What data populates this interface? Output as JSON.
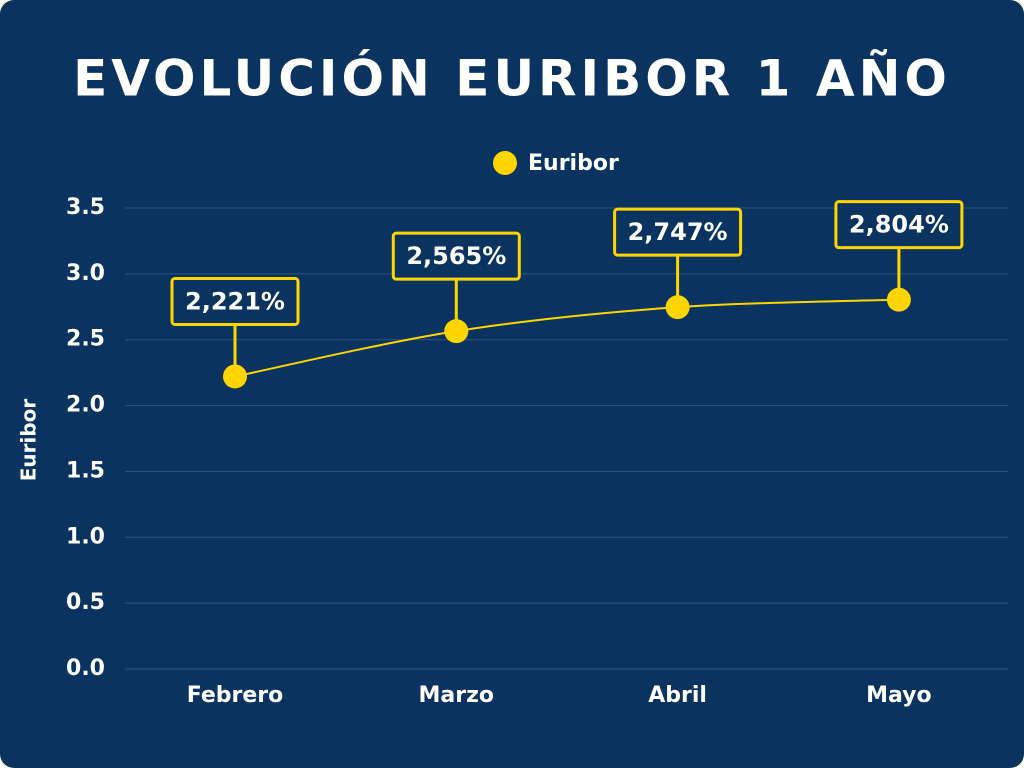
{
  "chart_data": {
    "type": "line",
    "title": "EVOLUCIÓN EURIBOR 1 AÑO",
    "y_label": "Euribor",
    "categories": [
      "Febrero",
      "Marzo",
      "Abril",
      "Mayo"
    ],
    "series": [
      {
        "name": "Euribor",
        "color": "#ffd500",
        "values": [
          2.221,
          2.565,
          2.747,
          2.804
        ],
        "value_labels": [
          "2,221%",
          "2,565%",
          "2,747%",
          "2,804%"
        ]
      }
    ],
    "ylim": [
      0,
      3.5
    ],
    "yticks": [
      {
        "value": 0,
        "label": "0.0"
      },
      0.5,
      {
        "value": 1,
        "label": "1.0"
      },
      1.5,
      {
        "value": 2,
        "label": "2.0"
      },
      2.5,
      {
        "value": 3,
        "label": "3.0"
      },
      3.5
    ],
    "grid": true,
    "legend": "top"
  }
}
